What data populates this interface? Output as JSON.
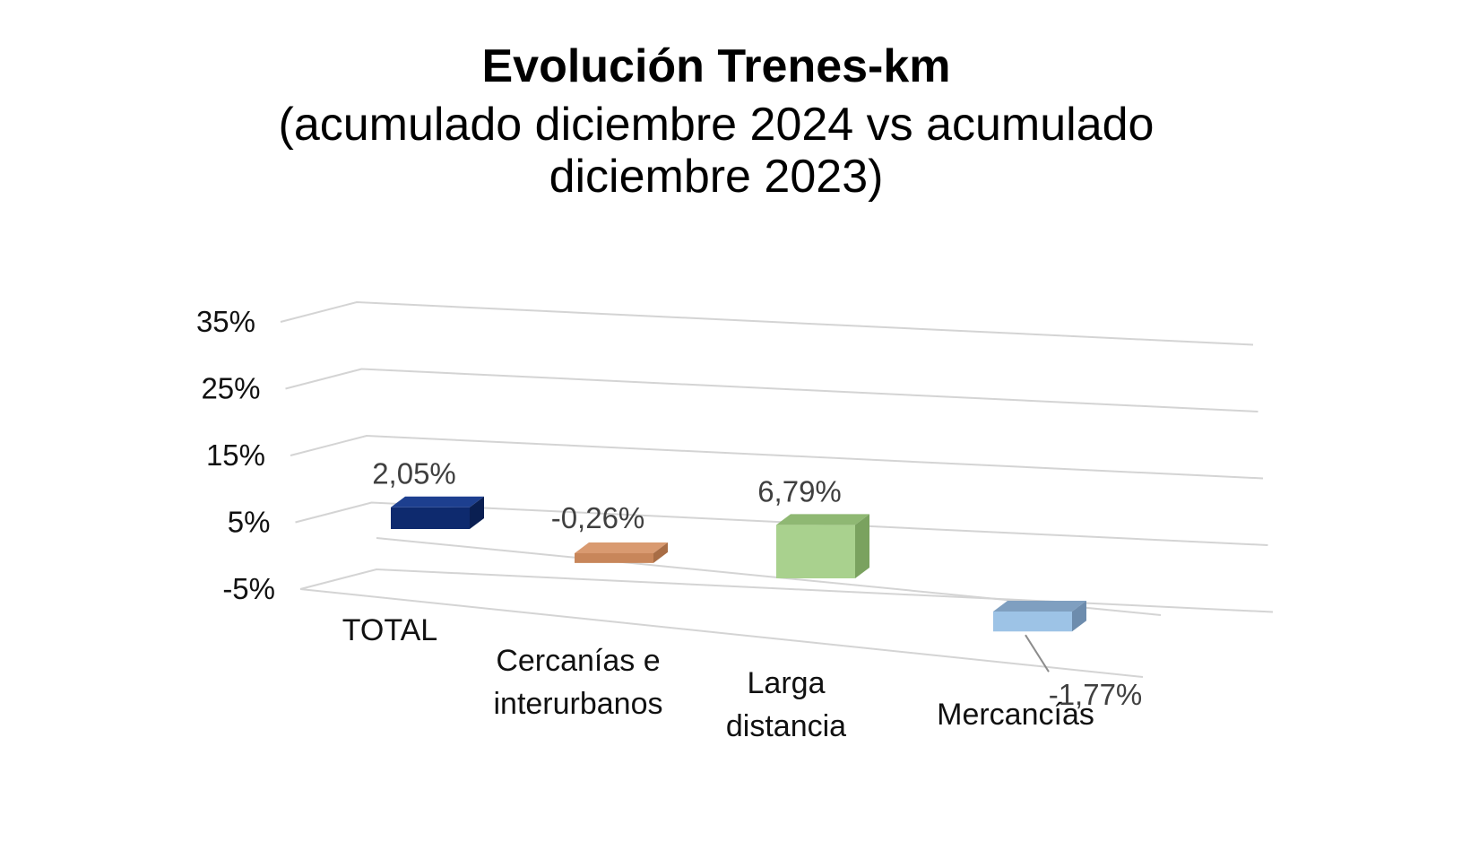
{
  "chart_data": {
    "type": "bar",
    "title": "Evolución Trenes-km",
    "subtitle": "(acumulado diciembre 2024 vs acumulado diciembre 2023)",
    "categories": [
      "TOTAL",
      "Cercanías e interurbanos",
      "Larga distancia",
      "Mercancías"
    ],
    "category_lines": [
      [
        "TOTAL"
      ],
      [
        "Cercanías e",
        "interurbanos"
      ],
      [
        "Larga",
        "distancia"
      ],
      [
        "Mercancías"
      ]
    ],
    "values": [
      2.05,
      -0.26,
      6.79,
      -1.77
    ],
    "value_labels": [
      "2,05%",
      "-0,26%",
      "6,79%",
      "-1,77%"
    ],
    "y_ticks": [
      "-5%",
      "5%",
      "15%",
      "25%",
      "35%"
    ],
    "y_tick_values": [
      -5,
      5,
      15,
      25,
      35
    ],
    "ylim": [
      -5,
      35
    ],
    "xlabel": "",
    "ylabel": "",
    "grid": true,
    "legend": false,
    "bar_colors": [
      {
        "front": "#0e2a6e",
        "top": "#1d3f8f",
        "side": "#0a1f52"
      },
      {
        "front": "#c8865a",
        "top": "#d99a70",
        "side": "#a86d45"
      },
      {
        "front": "#a9d18e",
        "top": "#8fb873",
        "side": "#7aa25f"
      },
      {
        "front": "#9dc3e6",
        "top": "#7f9fc0",
        "side": "#6d8cad"
      }
    ]
  }
}
